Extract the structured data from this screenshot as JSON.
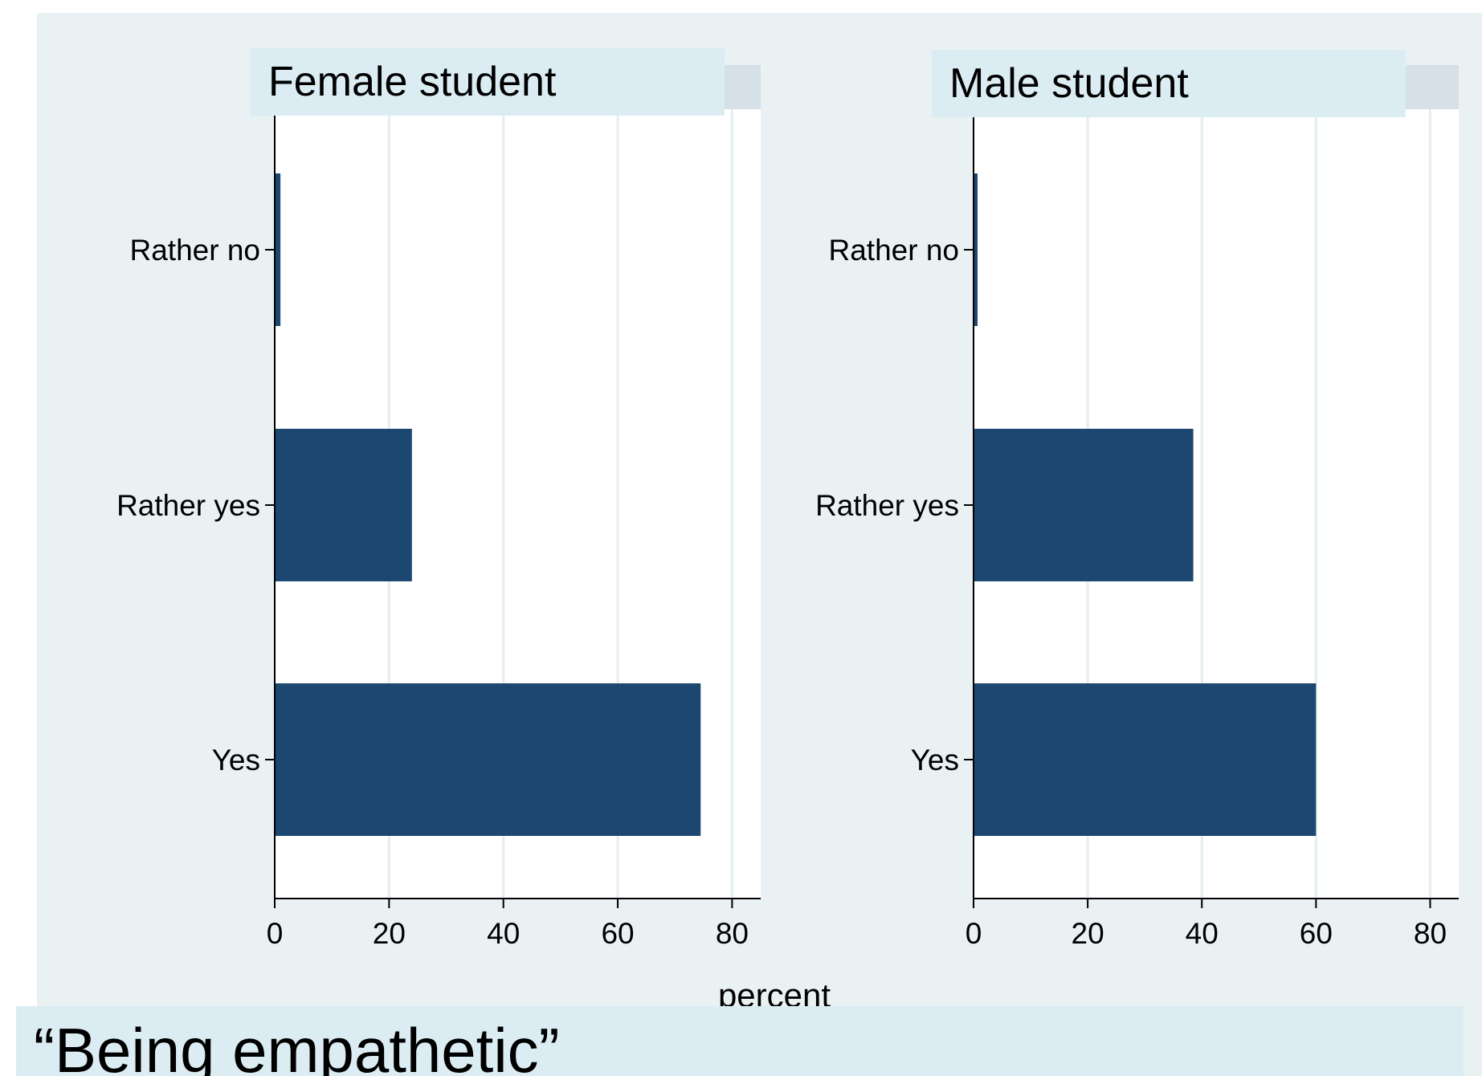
{
  "chart_data": {
    "type": "bar",
    "orientation": "horizontal",
    "categories": [
      "Rather no",
      "Rather yes",
      "Yes"
    ],
    "xlabel": "percent",
    "xlim": [
      0,
      85
    ],
    "xticks": [
      0,
      20,
      40,
      60,
      80
    ],
    "grid": true,
    "bar_color": "#1c4770",
    "panels": [
      {
        "title": "Female student",
        "values": [
          1,
          24,
          74.5
        ]
      },
      {
        "title": "Male student",
        "values": [
          0.7,
          38.5,
          60
        ]
      }
    ],
    "caption": "“Being empathetic”"
  },
  "colors": {
    "background": "#e9f1f3",
    "plot_background": "#ffffff",
    "title_box": "#dbedf3",
    "title_strip": "#d5e1e6",
    "grid": "#e4eef1",
    "axis": "#000000"
  }
}
